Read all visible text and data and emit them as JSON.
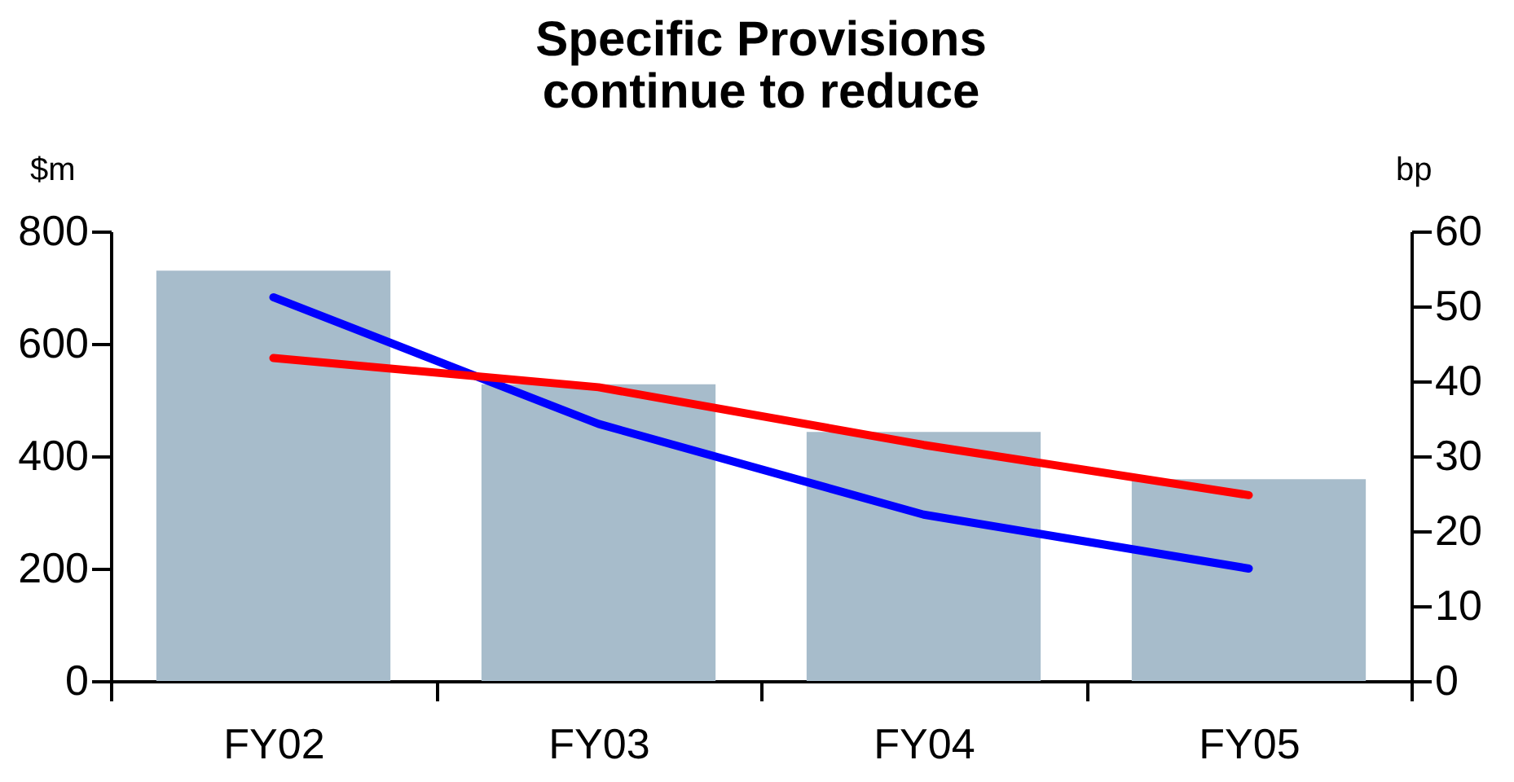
{
  "chart_data": {
    "type": "bar",
    "title": [
      "Specific Provisions",
      "continue to reduce"
    ],
    "ylabel": "$m",
    "y2label": "bp",
    "categories": [
      "FY02",
      "FY03",
      "FY04",
      "FY05"
    ],
    "series": [
      {
        "color": "#a7bccb",
        "values": [
          730,
          528,
          443,
          359
        ]
      },
      {
        "type": "line",
        "axis": "y2",
        "color": "#0000ff",
        "values": [
          51.2,
          34.3,
          22.2,
          15.0
        ]
      },
      {
        "type": "line",
        "axis": "y2",
        "color": "#ff0000",
        "values": [
          43.1,
          39.2,
          31.5,
          24.8
        ]
      }
    ],
    "ylim": [
      0,
      800
    ],
    "yticks": [
      0,
      200,
      400,
      600,
      800
    ],
    "y2lim": [
      0,
      60
    ],
    "y2ticks": [
      0,
      10,
      20,
      30,
      40,
      50,
      60
    ],
    "grid": false,
    "legend": false
  }
}
